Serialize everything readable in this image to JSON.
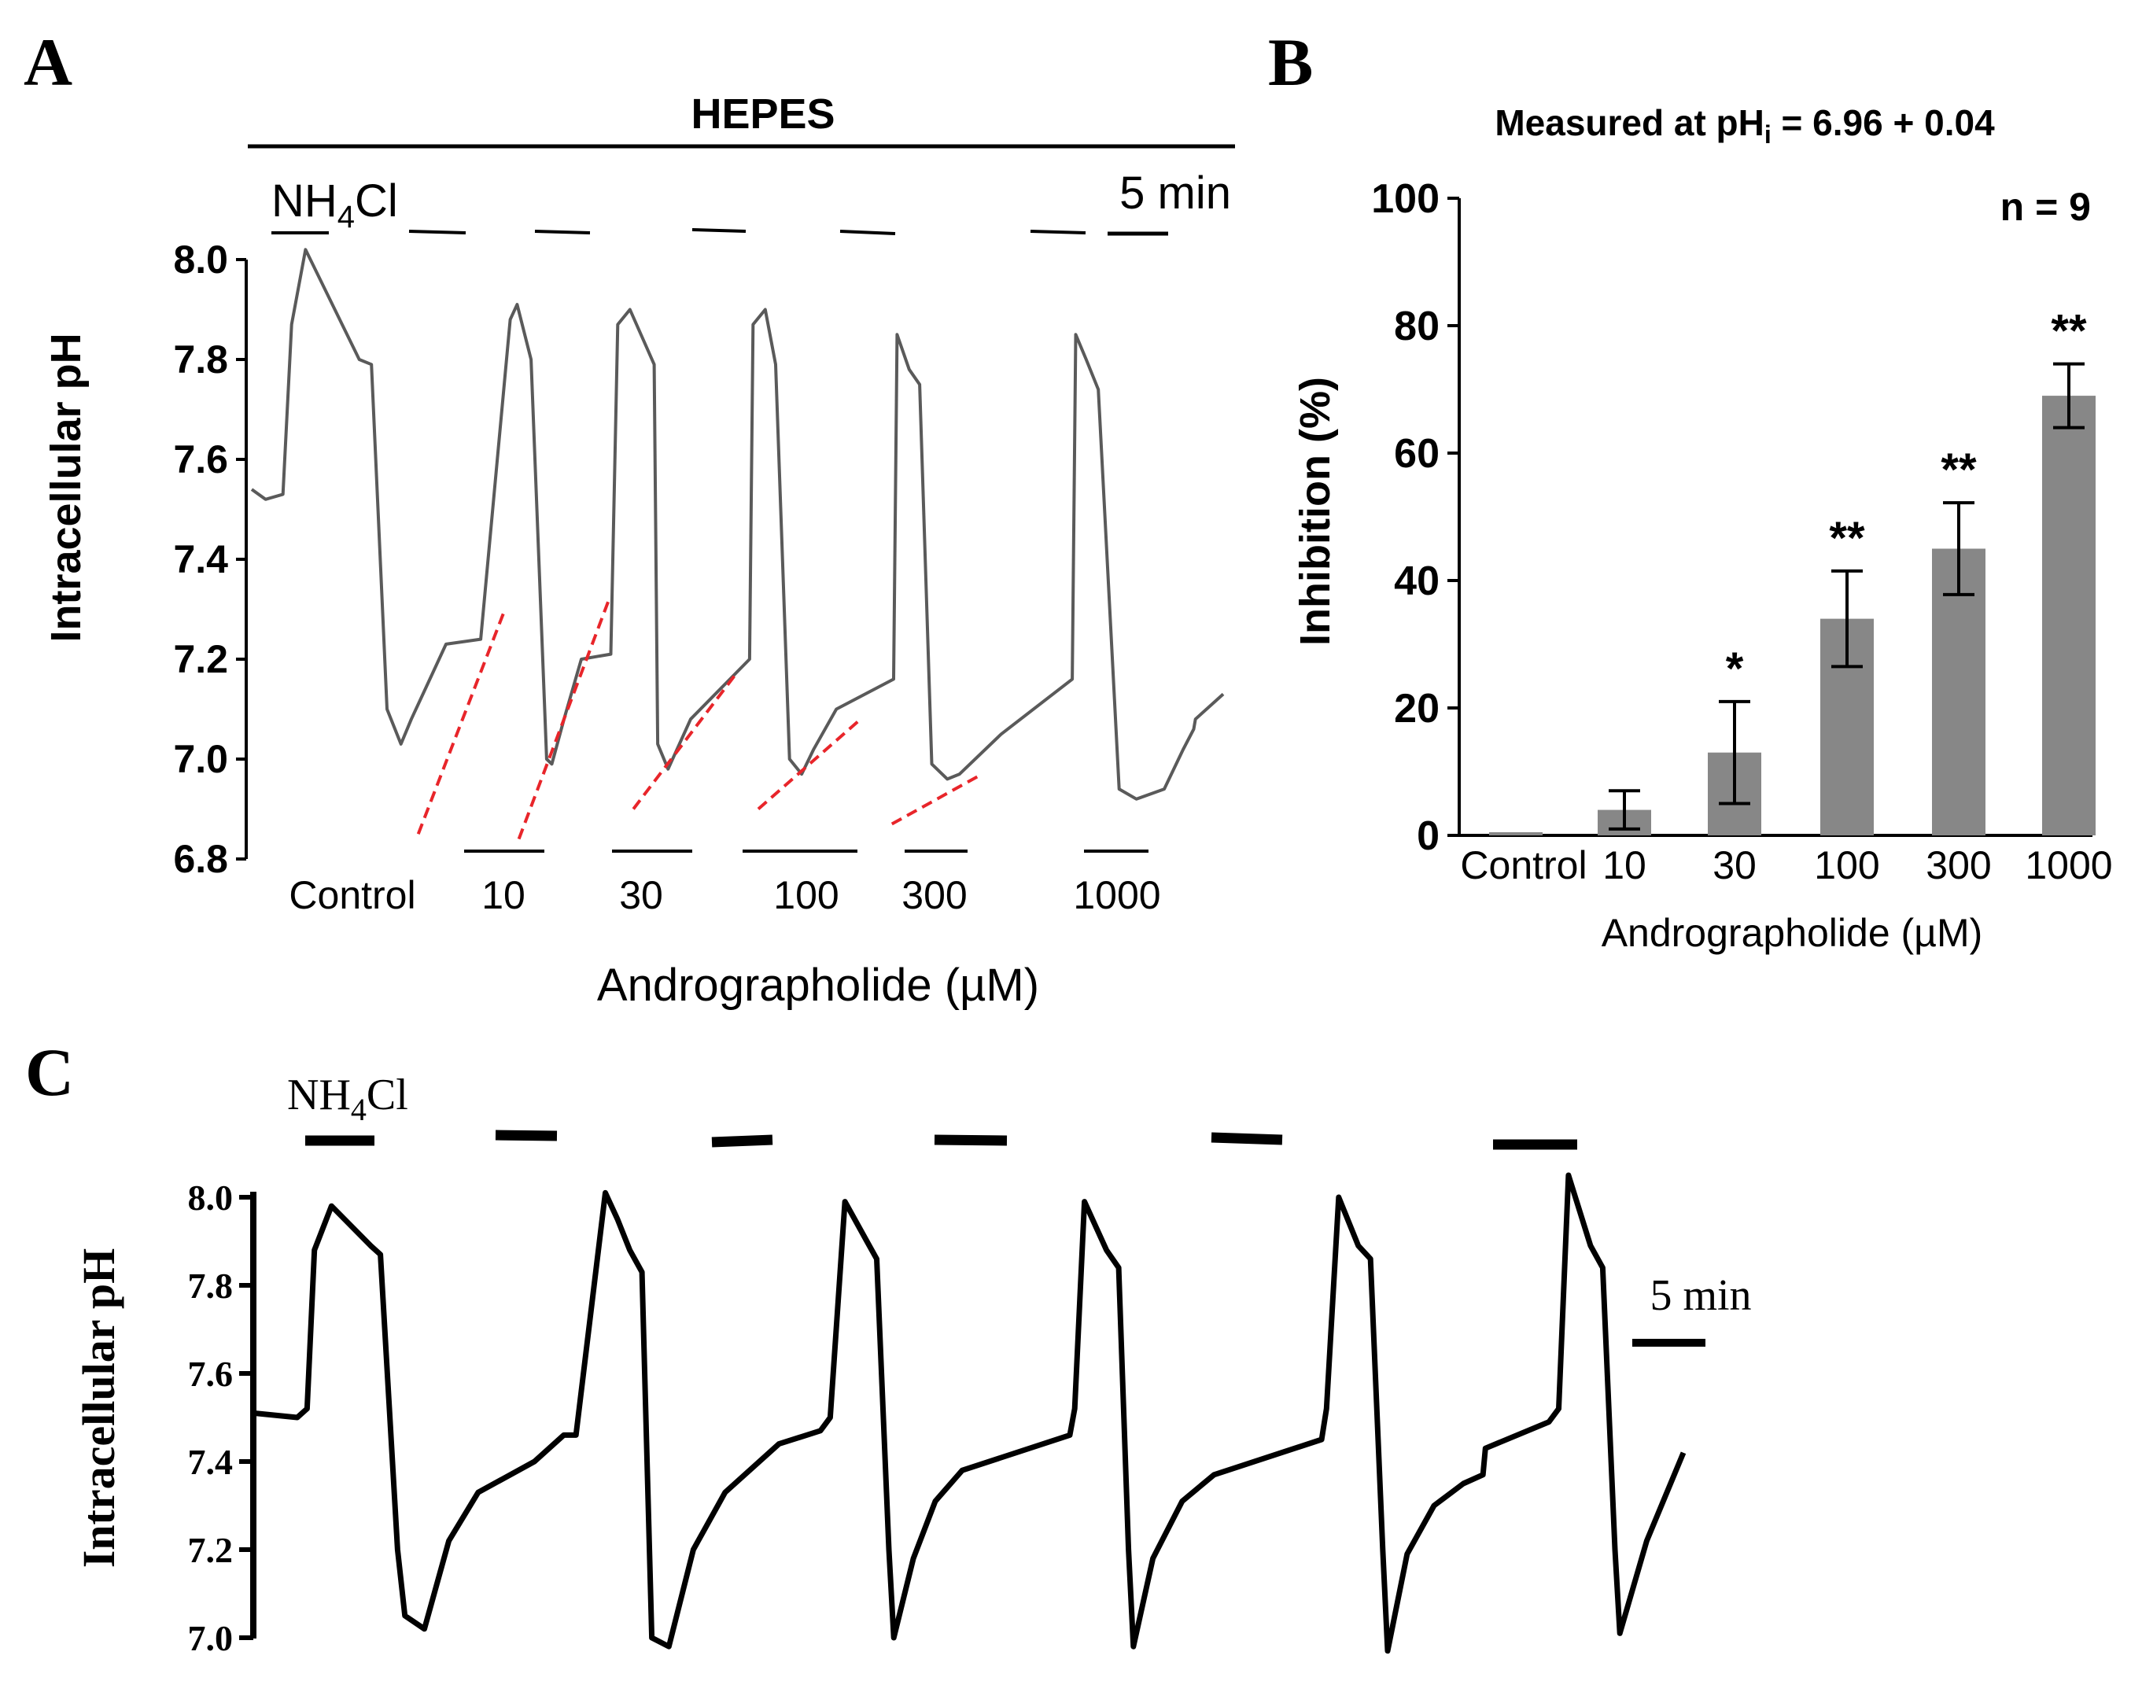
{
  "chart_data": [
    {
      "panel": "A",
      "type": "line",
      "title": "HEPES",
      "ylabel": "Intracellular pH",
      "xlabel": "Andrographolide (µM)",
      "ylim": [
        6.8,
        8.0
      ],
      "yticks": [
        "8.0",
        "7.8",
        "7.6",
        "7.4",
        "7.2",
        "7.0",
        "6.8"
      ],
      "ytick_values": [
        8.0,
        7.8,
        7.6,
        7.4,
        7.2,
        7.0,
        6.8
      ],
      "pulse_label_main": "NH",
      "pulse_label_sub": "4",
      "pulse_label_tail": "Cl",
      "scale_bar_label": "5 min",
      "condition_labels": [
        "Control",
        "10",
        "30",
        "100",
        "300",
        "1000"
      ],
      "series": [
        {
          "name": "pHi trace",
          "t_min": [
            0,
            0.8,
            1.8,
            2.3,
            3.1,
            6.2,
            6.9,
            7.8,
            8.6,
            9.2,
            10.4,
            11.2,
            13.2,
            14.9,
            15.3,
            16.1,
            17.0,
            17.3,
            18.0,
            19.0,
            20.7,
            21.1,
            21.8,
            23.2,
            23.4,
            24.0,
            25.3,
            28.7,
            28.9,
            29.6,
            30.2,
            31.0,
            31.7,
            32.4,
            33.7,
            37.0,
            37.2,
            37.9,
            38.5,
            39.2,
            40.1,
            40.8,
            43.2,
            47.3,
            47.5,
            48.1,
            48.8,
            50.0,
            51.0,
            52.6,
            53.7,
            54.3,
            54.4,
            56.0
          ],
          "ph": [
            7.54,
            7.52,
            7.53,
            7.87,
            8.02,
            7.8,
            7.79,
            7.1,
            7.03,
            7.08,
            7.17,
            7.23,
            7.24,
            7.88,
            7.91,
            7.8,
            7.0,
            6.99,
            7.08,
            7.2,
            7.21,
            7.87,
            7.9,
            7.79,
            7.03,
            6.98,
            7.08,
            7.2,
            7.87,
            7.9,
            7.79,
            7.0,
            6.97,
            7.02,
            7.1,
            7.16,
            7.85,
            7.78,
            7.75,
            6.99,
            6.96,
            6.97,
            7.05,
            7.16,
            7.85,
            7.8,
            7.74,
            6.94,
            6.92,
            6.94,
            7.02,
            7.06,
            7.08,
            7.13
          ]
        }
      ],
      "slope_fits": [
        {
          "condition": "10",
          "t_min": [
            9.6,
            14.6
          ],
          "ph": [
            6.85,
            7.3
          ]
        },
        {
          "condition": "30",
          "t_min": [
            15.4,
            20.6
          ],
          "ph": [
            6.84,
            7.32
          ]
        },
        {
          "condition": "100",
          "t_min": [
            22.0,
            27.9
          ],
          "ph": [
            6.9,
            7.17
          ]
        },
        {
          "condition": "300",
          "t_min": [
            29.2,
            35.1
          ],
          "ph": [
            6.9,
            7.08
          ]
        },
        {
          "condition": "1000",
          "t_min": [
            36.9,
            42.1
          ],
          "ph": [
            6.87,
            6.97
          ]
        }
      ]
    },
    {
      "panel": "B",
      "type": "bar",
      "title_main": "Measured at pH",
      "title_sub": "i",
      "title_tail": " = 6.96 + 0.04",
      "annotation": "n = 9",
      "ylabel": "Inhibition (%)",
      "xlabel": "Andrographolide (µM)",
      "ylim": [
        0,
        100
      ],
      "yticks": [
        "100",
        "80",
        "60",
        "40",
        "20",
        "0"
      ],
      "ytick_values": [
        100,
        80,
        60,
        40,
        20,
        0
      ],
      "categories": [
        "Control",
        "10",
        "30",
        "100",
        "300",
        "1000"
      ],
      "values": [
        0.5,
        4,
        13,
        34,
        45,
        69
      ],
      "errors": [
        0,
        3,
        8,
        7.5,
        7.2,
        5
      ],
      "significance": [
        "",
        "",
        "*",
        "**",
        "**",
        "**"
      ]
    },
    {
      "panel": "C",
      "type": "line",
      "ylabel": "Intracellular pH",
      "ylim": [
        7.0,
        8.0
      ],
      "yticks": [
        "8.0",
        "7.8",
        "7.6",
        "7.4",
        "7.2",
        "7.0"
      ],
      "ytick_values": [
        8.0,
        7.8,
        7.6,
        7.4,
        7.2,
        7.0
      ],
      "pulse_label_main": "NH",
      "pulse_label_sub": "4",
      "pulse_label_tail": "Cl",
      "scale_bar_label": "5 min",
      "series": [
        {
          "name": "pHi trace",
          "t_min": [
            0,
            1.8,
            2.2,
            2.5,
            3.2,
            4.8,
            5.2,
            5.9,
            6.2,
            7.0,
            8.0,
            9.2,
            11.5,
            12.7,
            13.2,
            14.4,
            14.9,
            15.4,
            15.9,
            16.3,
            17.0,
            18.0,
            19.3,
            21.5,
            23.2,
            23.6,
            24.2,
            25.1,
            25.5,
            26.0,
            26.2,
            27.0,
            27.9,
            29.0,
            33.4,
            33.6,
            34.0,
            34.9,
            35.4,
            35.8,
            36.0,
            36.8,
            38.0,
            39.3,
            43.7,
            43.9,
            44.4,
            45.2,
            45.7,
            46.2,
            46.4,
            47.2,
            48.3,
            49.5,
            50.3,
            50.4,
            53.0,
            53.4,
            53.8,
            54.7,
            55.2,
            55.7,
            55.9,
            57.0,
            58.5
          ],
          "ph": [
            7.51,
            7.5,
            7.52,
            7.88,
            7.98,
            7.89,
            7.87,
            7.2,
            7.05,
            7.02,
            7.22,
            7.33,
            7.4,
            7.46,
            7.46,
            8.01,
            7.95,
            7.88,
            7.83,
            7.0,
            6.98,
            7.2,
            7.33,
            7.44,
            7.47,
            7.5,
            7.99,
            7.9,
            7.86,
            7.2,
            7.0,
            7.18,
            7.31,
            7.38,
            7.46,
            7.52,
            7.99,
            7.88,
            7.84,
            7.2,
            6.98,
            7.18,
            7.31,
            7.37,
            7.45,
            7.52,
            8.0,
            7.89,
            7.86,
            7.2,
            6.97,
            7.19,
            7.3,
            7.35,
            7.37,
            7.43,
            7.49,
            7.52,
            8.05,
            7.89,
            7.84,
            7.2,
            7.01,
            7.22,
            7.42
          ]
        }
      ]
    }
  ]
}
